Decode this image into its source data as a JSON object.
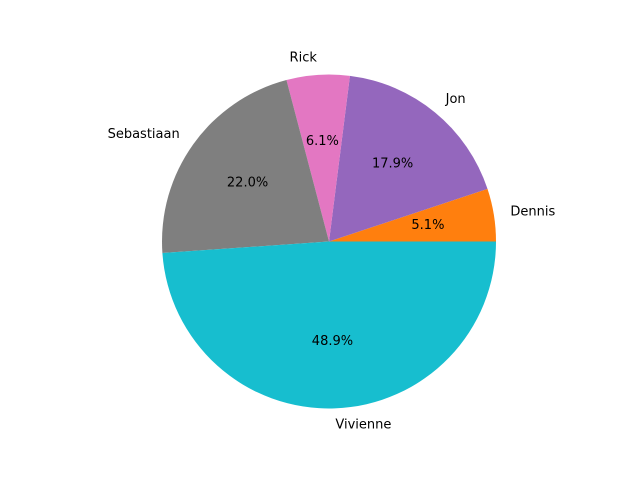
{
  "chart_data": {
    "type": "pie",
    "title": "",
    "labels": [
      "Dennis",
      "Jon",
      "Rick",
      "Sebastiaan",
      "Vivienne"
    ],
    "values": [
      5.1,
      17.9,
      6.1,
      22.0,
      48.9
    ],
    "percent_labels": [
      "5.1%",
      "17.9%",
      "6.1%",
      "22.0%",
      "48.9%"
    ],
    "colors": [
      "#ff7f0e",
      "#9467bd",
      "#e377c2",
      "#7f7f7f",
      "#17becf"
    ],
    "start_angle": 0,
    "direction": "counterclockwise",
    "legend": "none"
  }
}
